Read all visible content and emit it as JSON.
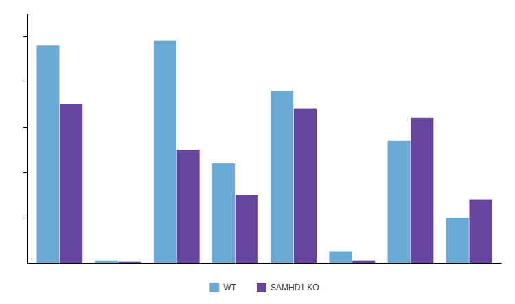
{
  "chart_data": {
    "type": "bar",
    "categories": [
      null,
      null,
      null,
      null,
      null,
      null,
      null,
      null
    ],
    "series": [
      {
        "name": "WT",
        "color": "#6aaad4",
        "values": [
          4.8,
          0.05,
          4.9,
          2.2,
          3.8,
          0.25,
          2.7,
          1.0
        ]
      },
      {
        "name": "SAMHD1 KO",
        "color": "#6644a0",
        "values": [
          3.5,
          0.02,
          2.5,
          1.5,
          3.4,
          0.05,
          3.2,
          1.4
        ]
      }
    ],
    "ylim": [
      0,
      5.5
    ],
    "yticks": [
      1,
      2,
      3,
      4,
      5
    ],
    "tick_labels": false,
    "grid": false,
    "legend": "bottom"
  }
}
